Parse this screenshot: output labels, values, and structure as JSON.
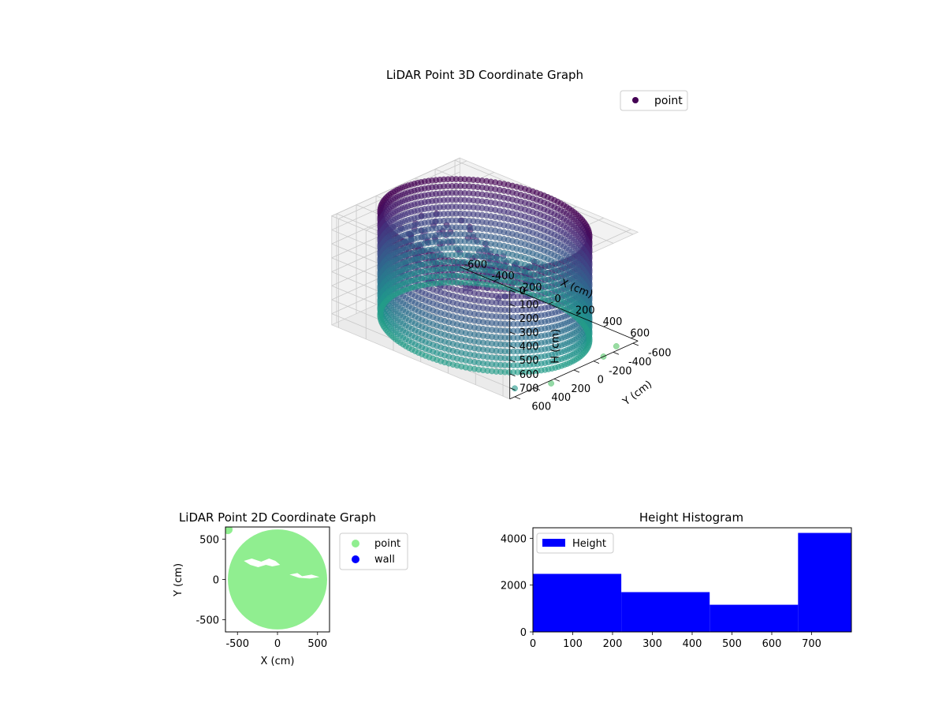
{
  "chart_data": [
    {
      "type": "scatter",
      "title": "LiDAR Point 3D Coordinate Graph",
      "xlabel": "X (cm)",
      "ylabel": "Y (cm)",
      "zlabel": "H (cm)",
      "xlim": [
        -650,
        650
      ],
      "ylim": [
        -650,
        650
      ],
      "zlim": [
        0,
        780
      ],
      "z_inverted": true,
      "xticks": [
        -600,
        -400,
        -200,
        0,
        200,
        400,
        600
      ],
      "yticks": [
        600,
        400,
        200,
        0,
        -200,
        -400,
        -600
      ],
      "zticks": [
        0,
        100,
        200,
        300,
        400,
        500,
        600,
        700
      ],
      "colormap": "viridis",
      "legend": {
        "entries": [
          "point"
        ],
        "placement": "upper-right",
        "marker_color": "#440154"
      },
      "series": [
        {
          "name": "point",
          "shape": "cylindrical wall of points",
          "radius": 620,
          "height_range": [
            0,
            740
          ],
          "approx_point_count": 9600,
          "stray_points": [
            {
              "x": 650,
              "y": 600,
              "h": 720
            },
            {
              "x": 700,
              "y": 300,
              "h": 760
            },
            {
              "x": 650,
              "y": -300,
              "h": 780
            },
            {
              "x": 600,
              "y": -500,
              "h": 790
            }
          ]
        }
      ]
    },
    {
      "type": "scatter",
      "title": "LiDAR Point 2D Coordinate Graph",
      "xlabel": "X (cm)",
      "ylabel": "Y (cm)",
      "xlim": [
        -650,
        650
      ],
      "ylim": [
        -650,
        650
      ],
      "xticks": [
        -500,
        0,
        500
      ],
      "yticks": [
        500,
        0,
        -500
      ],
      "legend": {
        "entries": [
          "point",
          "wall"
        ],
        "placement": "outside right",
        "colors": [
          "#90ee90",
          "#0000ff"
        ]
      },
      "series": [
        {
          "name": "point",
          "color": "#90ee90",
          "shape": "filled disk",
          "center": [
            0,
            0
          ],
          "radius": 620
        },
        {
          "name": "wall",
          "color": "#0000ff",
          "points": []
        }
      ]
    },
    {
      "type": "bar",
      "title": "Height Histogram",
      "xlim": [
        0,
        800
      ],
      "ylim": [
        0,
        4450
      ],
      "xticks": [
        0,
        100,
        200,
        300,
        400,
        500,
        600,
        700
      ],
      "yticks": [
        0,
        2000,
        4000
      ],
      "color": "#0000ff",
      "legend": {
        "entries": [
          "Height"
        ],
        "placement": "upper-left"
      },
      "series": [
        {
          "name": "Height",
          "bin_edges": [
            0,
            222,
            444,
            666,
            800
          ],
          "values": [
            2480,
            1700,
            1160,
            4230
          ]
        }
      ]
    }
  ]
}
